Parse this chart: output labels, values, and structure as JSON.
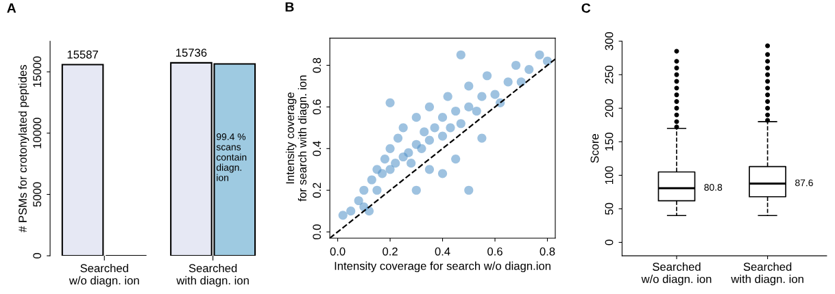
{
  "chart_data": [
    {
      "type": "bar",
      "title": "A",
      "ylabel": "# PSMs for crotonylated peptides",
      "categories": [
        "Searched\nw/o diagn. ion",
        "Searched\nwith diagn. ion"
      ],
      "ylim": [
        0,
        17500
      ],
      "yticks": [
        0,
        5000,
        10000,
        15000
      ],
      "series": [
        {
          "color": "#e6e8f4",
          "values": [
            15587,
            15736
          ],
          "value_labels": [
            "15587",
            "15736"
          ]
        },
        {
          "colors": [
            "#000000",
            "#9ecae1"
          ],
          "values": [
            0,
            15640
          ],
          "value_labels": [
            null,
            null
          ]
        }
      ],
      "annotations": [
        {
          "text": "99.4 %\nscans\ncontain\ndiagn.\nion",
          "x": "Searched\nwith diagn. ion",
          "y": 10000
        }
      ]
    },
    {
      "type": "scatter",
      "title": "B",
      "xlabel": "Intensity coverage for search w/o diagn.ion",
      "ylabel": "Intensity coverage\nfor search with diagn. ion",
      "xlim": [
        -0.03,
        0.83
      ],
      "ylim": [
        -0.03,
        0.93
      ],
      "xticks": [
        {
          "value": 0,
          "label": "0.0"
        },
        0.2,
        0.4,
        0.6,
        0.8
      ],
      "yticks": [
        {
          "value": 0,
          "label": "0.0"
        },
        0.2,
        0.4,
        0.6,
        0.8
      ],
      "series": [
        {
          "type": "scatter",
          "color": "#4f8fc6",
          "marker": "circle",
          "x": [
            0.02,
            0.05,
            0.08,
            0.1,
            0.1,
            0.13,
            0.15,
            0.15,
            0.17,
            0.18,
            0.2,
            0.2,
            0.22,
            0.23,
            0.25,
            0.25,
            0.27,
            0.28,
            0.3,
            0.3,
            0.32,
            0.33,
            0.35,
            0.35,
            0.37,
            0.4,
            0.4,
            0.42,
            0.43,
            0.45,
            0.47,
            0.5,
            0.5,
            0.53,
            0.55,
            0.57,
            0.6,
            0.62,
            0.65,
            0.68,
            0.7,
            0.73,
            0.77,
            0.8,
            0.45,
            0.5,
            0.4,
            0.3,
            0.47,
            0.2,
            0.55,
            0.12,
            0.35
          ],
          "values": [
            0.08,
            0.1,
            0.15,
            0.12,
            0.2,
            0.25,
            0.2,
            0.3,
            0.28,
            0.35,
            0.3,
            0.4,
            0.33,
            0.45,
            0.36,
            0.5,
            0.38,
            0.33,
            0.42,
            0.55,
            0.4,
            0.48,
            0.44,
            0.6,
            0.5,
            0.46,
            0.55,
            0.65,
            0.5,
            0.58,
            0.52,
            0.6,
            0.7,
            0.58,
            0.65,
            0.75,
            0.66,
            0.62,
            0.72,
            0.8,
            0.72,
            0.78,
            0.85,
            0.82,
            0.35,
            0.2,
            0.28,
            0.2,
            0.85,
            0.62,
            0.45,
            0.1,
            0.3
          ]
        },
        {
          "type": "line",
          "color": "#000000",
          "marker": "none",
          "line_style": "dashed",
          "x": [
            -0.03,
            0.83
          ],
          "values": [
            -0.03,
            0.83
          ]
        }
      ]
    },
    {
      "type": "box",
      "title": "C",
      "ylabel": "Score",
      "categories": [
        "Searched\nw/o diagn. ion",
        "Searched\nwith diagn. ion"
      ],
      "ylim": [
        -20,
        300
      ],
      "yticks": [
        0,
        50,
        100,
        150,
        200,
        250,
        300
      ],
      "boxes": [
        {
          "low": 40,
          "q1": 62,
          "median": 80.8,
          "q3": 105,
          "high": 170,
          "outliers": [
            172,
            180,
            190,
            200,
            210,
            220,
            230,
            240,
            250,
            260,
            270,
            285
          ]
        },
        {
          "low": 40,
          "q1": 68,
          "median": 87.6,
          "q3": 113,
          "high": 180,
          "outliers": [
            182,
            190,
            200,
            210,
            220,
            230,
            240,
            250,
            260,
            270,
            280,
            293
          ]
        }
      ],
      "value_labels": [
        "80.8",
        "87.6"
      ]
    }
  ]
}
